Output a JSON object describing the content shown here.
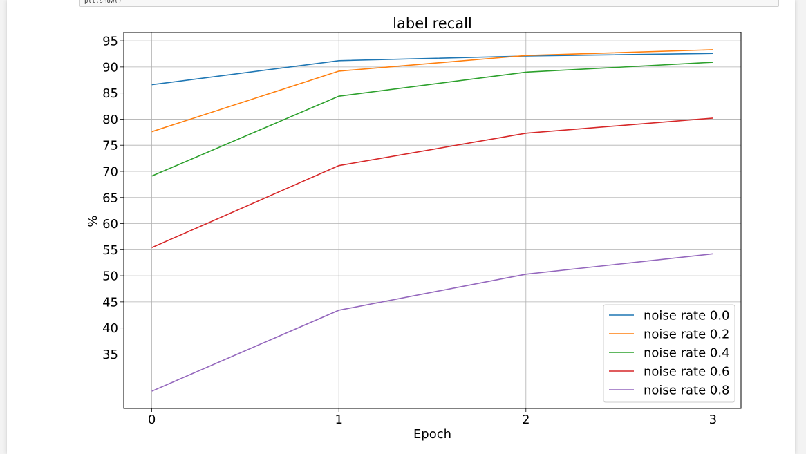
{
  "notebook": {
    "code_tail": "plt.show()"
  },
  "chart_data": {
    "type": "line",
    "title": "label recall",
    "xlabel": "Epoch",
    "ylabel": "%",
    "x": [
      0,
      1,
      2,
      3
    ],
    "xticks": [
      0,
      1,
      2,
      3
    ],
    "xlim": [
      -0.15,
      3.15
    ],
    "yticks": [
      35,
      40,
      45,
      50,
      55,
      60,
      65,
      70,
      75,
      80,
      85,
      90,
      95
    ],
    "ylim": [
      24.6,
      96.6
    ],
    "grid": true,
    "legend_position": "lower-right",
    "series": [
      {
        "name": "noise rate 0.0",
        "color": "#1f77b4",
        "values": [
          86.6,
          91.2,
          92.1,
          92.6
        ]
      },
      {
        "name": "noise rate 0.2",
        "color": "#ff7f0e",
        "values": [
          77.6,
          89.2,
          92.2,
          93.3
        ]
      },
      {
        "name": "noise rate 0.4",
        "color": "#2ca02c",
        "values": [
          69.1,
          84.4,
          89.0,
          90.9
        ]
      },
      {
        "name": "noise rate 0.6",
        "color": "#d62728",
        "values": [
          55.4,
          71.1,
          77.3,
          80.2
        ]
      },
      {
        "name": "noise rate 0.8",
        "color": "#9467bd",
        "values": [
          27.9,
          43.4,
          50.3,
          54.2
        ]
      }
    ]
  }
}
